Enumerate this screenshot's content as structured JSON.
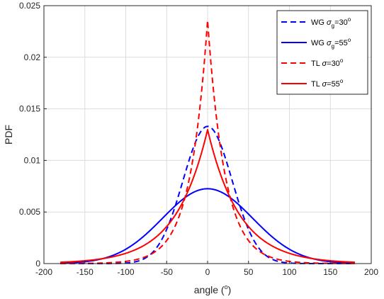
{
  "chart_data": {
    "type": "line",
    "xlabel": "angle (",
    "xlabel_sup": "o",
    "xlabel_suffix": ")",
    "ylabel": "PDF",
    "xlim": [
      -200,
      200
    ],
    "ylim": [
      0,
      0.025
    ],
    "xticks": [
      -200,
      -150,
      -100,
      -50,
      0,
      50,
      100,
      150,
      200
    ],
    "yticks": [
      0,
      0.005,
      0.01,
      0.015,
      0.02,
      0.025
    ],
    "ytick_labels": [
      "0",
      "0.005",
      "0.01",
      "0.015",
      "0.02",
      "0.025"
    ],
    "grid": true,
    "legend_position": "top-right",
    "x_range": [
      -180,
      180
    ],
    "series": [
      {
        "legend": {
          "prefix": "WG ",
          "symbol": "σ",
          "sub": "g",
          "suffix": "=30",
          "sup": "o"
        },
        "color": "#0000ff",
        "dash": "dashed",
        "model": "wrapped-gaussian",
        "param_deg": 30,
        "x": [
          -180,
          -150,
          -120,
          -90,
          -60,
          -45,
          -30,
          -15,
          0,
          15,
          30,
          45,
          60,
          90,
          120,
          150,
          180
        ],
        "values": [
          0.0,
          0.0,
          5e-05,
          0.00015,
          0.0017,
          0.0043,
          0.0081,
          0.0117,
          0.0133,
          0.0117,
          0.0081,
          0.0043,
          0.0017,
          0.00015,
          5e-05,
          0.0,
          0.0
        ]
      },
      {
        "legend": {
          "prefix": "WG ",
          "symbol": "σ",
          "sub": "g",
          "suffix": "=55",
          "sup": "o"
        },
        "color": "#0000ff",
        "dash": "solid",
        "model": "wrapped-gaussian",
        "param_deg": 55,
        "x": [
          -180,
          -150,
          -120,
          -90,
          -60,
          -45,
          -30,
          -15,
          0,
          15,
          30,
          45,
          60,
          90,
          120,
          150,
          180
        ],
        "values": [
          0.0,
          0.0002,
          0.0007,
          0.0019,
          0.004,
          0.0052,
          0.0063,
          0.007,
          0.0073,
          0.007,
          0.0063,
          0.0052,
          0.004,
          0.0019,
          0.0007,
          0.0002,
          0.0
        ]
      },
      {
        "legend": {
          "prefix": "TL ",
          "symbol": "σ",
          "sub": "",
          "suffix": "=30",
          "sup": "o"
        },
        "color": "#ff0000",
        "dash": "dashed",
        "model": "truncated-laplacian",
        "param_deg": 30,
        "x": [
          -180,
          -150,
          -120,
          -90,
          -60,
          -45,
          -30,
          -15,
          0,
          15,
          30,
          45,
          60,
          90,
          120,
          150,
          180
        ],
        "values": [
          0.0,
          0.0001,
          0.0002,
          0.0005,
          0.0015,
          0.0028,
          0.0055,
          0.0117,
          0.0236,
          0.0117,
          0.0055,
          0.0028,
          0.0015,
          0.0005,
          0.0002,
          0.0001,
          0.0
        ]
      },
      {
        "legend": {
          "prefix": "TL ",
          "symbol": "σ",
          "sub": "",
          "suffix": "=55",
          "sup": "o"
        },
        "color": "#ff0000",
        "dash": "solid",
        "model": "truncated-laplacian",
        "param_deg": 55,
        "x": [
          -180,
          -150,
          -120,
          -90,
          -60,
          -45,
          -30,
          -15,
          0,
          15,
          30,
          45,
          60,
          90,
          120,
          150,
          180
        ],
        "values": [
          0.0001,
          0.0002,
          0.0006,
          0.0012,
          0.0027,
          0.0038,
          0.0055,
          0.0089,
          0.0128,
          0.0089,
          0.0055,
          0.0038,
          0.0027,
          0.0012,
          0.0006,
          0.0002,
          0.0001
        ]
      }
    ]
  }
}
